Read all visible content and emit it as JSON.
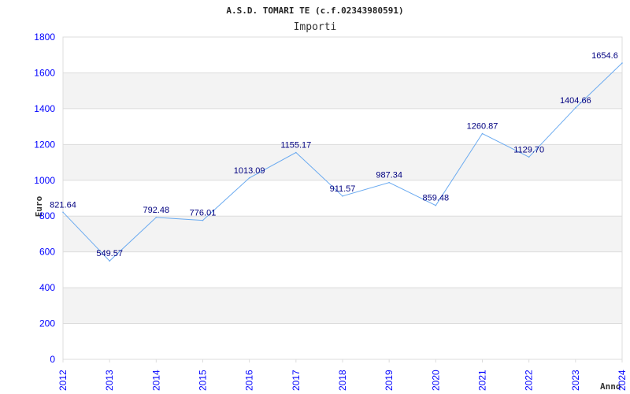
{
  "chart_data": {
    "type": "line",
    "title": "A.S.D. TOMARI TE (c.f.02343980591)",
    "subtitle": "Importi",
    "xlabel": "Anno",
    "ylabel": "Euro",
    "ylim": [
      0,
      1800
    ],
    "yticks": [
      0,
      200,
      400,
      600,
      800,
      1000,
      1200,
      1400,
      1600,
      1800
    ],
    "categories": [
      "2012",
      "2013",
      "2014",
      "2015",
      "2016",
      "2017",
      "2018",
      "2019",
      "2020",
      "2021",
      "2022",
      "2023",
      "2024"
    ],
    "values": [
      821.64,
      549.57,
      792.48,
      776.01,
      1013.09,
      1155.17,
      911.57,
      987.34,
      859.48,
      1260.87,
      1129.7,
      1404.66,
      1654.6
    ],
    "labels": [
      "821.64",
      "549.57",
      "792.48",
      "776.01",
      "1013.09",
      "1155.17",
      "911.57",
      "987.34",
      "859.48",
      "1260.87",
      "1129.70",
      "1404.66",
      "1654.6"
    ],
    "grid": true,
    "colors": {
      "line": "#6aaaf0",
      "tick": "#0000ff",
      "label": "#000080",
      "band": "#f3f3f3"
    }
  }
}
